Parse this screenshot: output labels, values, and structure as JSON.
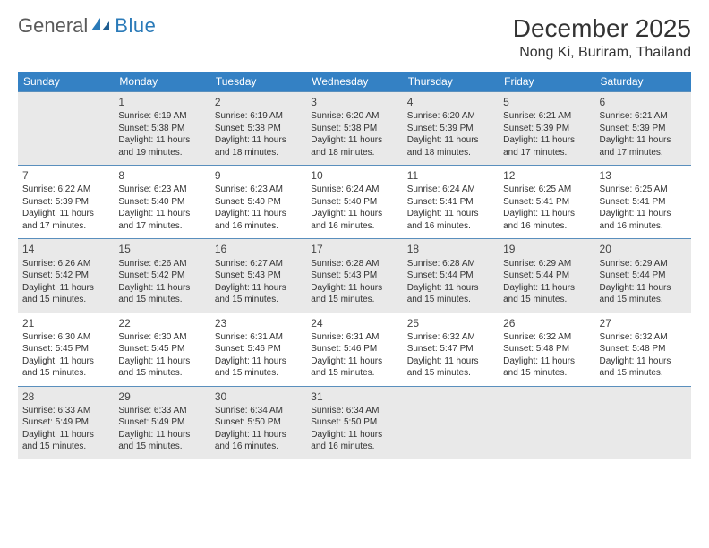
{
  "brand": {
    "part1": "General",
    "part2": "Blue"
  },
  "header": {
    "month_title": "December 2025",
    "location": "Nong Ki, Buriram, Thailand"
  },
  "colors": {
    "header_bg": "#3481c4",
    "header_text": "#ffffff",
    "row_odd_bg": "#e9e9e9",
    "row_even_bg": "#ffffff",
    "border": "#5a8fbd",
    "brand_gray": "#5a5a5a",
    "brand_blue": "#2a7ab8",
    "text": "#333333"
  },
  "typography": {
    "month_title_size": 28,
    "location_size": 16,
    "weekday_size": 12,
    "daynum_size": 12,
    "body_size": 10
  },
  "weekdays": [
    "Sunday",
    "Monday",
    "Tuesday",
    "Wednesday",
    "Thursday",
    "Friday",
    "Saturday"
  ],
  "weeks": [
    [
      {
        "day": "",
        "sunrise": "",
        "sunset": "",
        "daylight": ""
      },
      {
        "day": "1",
        "sunrise": "Sunrise: 6:19 AM",
        "sunset": "Sunset: 5:38 PM",
        "daylight": "Daylight: 11 hours and 19 minutes."
      },
      {
        "day": "2",
        "sunrise": "Sunrise: 6:19 AM",
        "sunset": "Sunset: 5:38 PM",
        "daylight": "Daylight: 11 hours and 18 minutes."
      },
      {
        "day": "3",
        "sunrise": "Sunrise: 6:20 AM",
        "sunset": "Sunset: 5:38 PM",
        "daylight": "Daylight: 11 hours and 18 minutes."
      },
      {
        "day": "4",
        "sunrise": "Sunrise: 6:20 AM",
        "sunset": "Sunset: 5:39 PM",
        "daylight": "Daylight: 11 hours and 18 minutes."
      },
      {
        "day": "5",
        "sunrise": "Sunrise: 6:21 AM",
        "sunset": "Sunset: 5:39 PM",
        "daylight": "Daylight: 11 hours and 17 minutes."
      },
      {
        "day": "6",
        "sunrise": "Sunrise: 6:21 AM",
        "sunset": "Sunset: 5:39 PM",
        "daylight": "Daylight: 11 hours and 17 minutes."
      }
    ],
    [
      {
        "day": "7",
        "sunrise": "Sunrise: 6:22 AM",
        "sunset": "Sunset: 5:39 PM",
        "daylight": "Daylight: 11 hours and 17 minutes."
      },
      {
        "day": "8",
        "sunrise": "Sunrise: 6:23 AM",
        "sunset": "Sunset: 5:40 PM",
        "daylight": "Daylight: 11 hours and 17 minutes."
      },
      {
        "day": "9",
        "sunrise": "Sunrise: 6:23 AM",
        "sunset": "Sunset: 5:40 PM",
        "daylight": "Daylight: 11 hours and 16 minutes."
      },
      {
        "day": "10",
        "sunrise": "Sunrise: 6:24 AM",
        "sunset": "Sunset: 5:40 PM",
        "daylight": "Daylight: 11 hours and 16 minutes."
      },
      {
        "day": "11",
        "sunrise": "Sunrise: 6:24 AM",
        "sunset": "Sunset: 5:41 PM",
        "daylight": "Daylight: 11 hours and 16 minutes."
      },
      {
        "day": "12",
        "sunrise": "Sunrise: 6:25 AM",
        "sunset": "Sunset: 5:41 PM",
        "daylight": "Daylight: 11 hours and 16 minutes."
      },
      {
        "day": "13",
        "sunrise": "Sunrise: 6:25 AM",
        "sunset": "Sunset: 5:41 PM",
        "daylight": "Daylight: 11 hours and 16 minutes."
      }
    ],
    [
      {
        "day": "14",
        "sunrise": "Sunrise: 6:26 AM",
        "sunset": "Sunset: 5:42 PM",
        "daylight": "Daylight: 11 hours and 15 minutes."
      },
      {
        "day": "15",
        "sunrise": "Sunrise: 6:26 AM",
        "sunset": "Sunset: 5:42 PM",
        "daylight": "Daylight: 11 hours and 15 minutes."
      },
      {
        "day": "16",
        "sunrise": "Sunrise: 6:27 AM",
        "sunset": "Sunset: 5:43 PM",
        "daylight": "Daylight: 11 hours and 15 minutes."
      },
      {
        "day": "17",
        "sunrise": "Sunrise: 6:28 AM",
        "sunset": "Sunset: 5:43 PM",
        "daylight": "Daylight: 11 hours and 15 minutes."
      },
      {
        "day": "18",
        "sunrise": "Sunrise: 6:28 AM",
        "sunset": "Sunset: 5:44 PM",
        "daylight": "Daylight: 11 hours and 15 minutes."
      },
      {
        "day": "19",
        "sunrise": "Sunrise: 6:29 AM",
        "sunset": "Sunset: 5:44 PM",
        "daylight": "Daylight: 11 hours and 15 minutes."
      },
      {
        "day": "20",
        "sunrise": "Sunrise: 6:29 AM",
        "sunset": "Sunset: 5:44 PM",
        "daylight": "Daylight: 11 hours and 15 minutes."
      }
    ],
    [
      {
        "day": "21",
        "sunrise": "Sunrise: 6:30 AM",
        "sunset": "Sunset: 5:45 PM",
        "daylight": "Daylight: 11 hours and 15 minutes."
      },
      {
        "day": "22",
        "sunrise": "Sunrise: 6:30 AM",
        "sunset": "Sunset: 5:45 PM",
        "daylight": "Daylight: 11 hours and 15 minutes."
      },
      {
        "day": "23",
        "sunrise": "Sunrise: 6:31 AM",
        "sunset": "Sunset: 5:46 PM",
        "daylight": "Daylight: 11 hours and 15 minutes."
      },
      {
        "day": "24",
        "sunrise": "Sunrise: 6:31 AM",
        "sunset": "Sunset: 5:46 PM",
        "daylight": "Daylight: 11 hours and 15 minutes."
      },
      {
        "day": "25",
        "sunrise": "Sunrise: 6:32 AM",
        "sunset": "Sunset: 5:47 PM",
        "daylight": "Daylight: 11 hours and 15 minutes."
      },
      {
        "day": "26",
        "sunrise": "Sunrise: 6:32 AM",
        "sunset": "Sunset: 5:48 PM",
        "daylight": "Daylight: 11 hours and 15 minutes."
      },
      {
        "day": "27",
        "sunrise": "Sunrise: 6:32 AM",
        "sunset": "Sunset: 5:48 PM",
        "daylight": "Daylight: 11 hours and 15 minutes."
      }
    ],
    [
      {
        "day": "28",
        "sunrise": "Sunrise: 6:33 AM",
        "sunset": "Sunset: 5:49 PM",
        "daylight": "Daylight: 11 hours and 15 minutes."
      },
      {
        "day": "29",
        "sunrise": "Sunrise: 6:33 AM",
        "sunset": "Sunset: 5:49 PM",
        "daylight": "Daylight: 11 hours and 15 minutes."
      },
      {
        "day": "30",
        "sunrise": "Sunrise: 6:34 AM",
        "sunset": "Sunset: 5:50 PM",
        "daylight": "Daylight: 11 hours and 16 minutes."
      },
      {
        "day": "31",
        "sunrise": "Sunrise: 6:34 AM",
        "sunset": "Sunset: 5:50 PM",
        "daylight": "Daylight: 11 hours and 16 minutes."
      },
      {
        "day": "",
        "sunrise": "",
        "sunset": "",
        "daylight": ""
      },
      {
        "day": "",
        "sunrise": "",
        "sunset": "",
        "daylight": ""
      },
      {
        "day": "",
        "sunrise": "",
        "sunset": "",
        "daylight": ""
      }
    ]
  ]
}
